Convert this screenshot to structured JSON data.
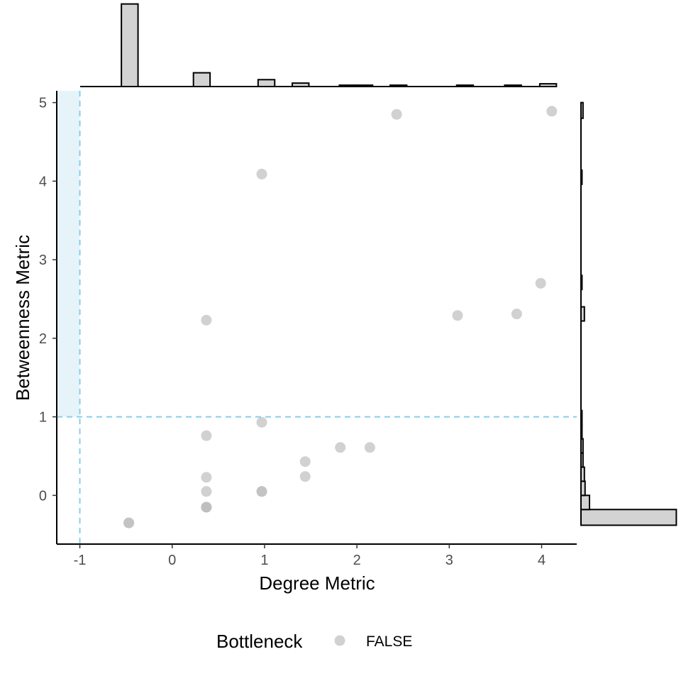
{
  "chart_data": {
    "type": "scatter",
    "title": "",
    "xlabel": "Degree Metric",
    "ylabel": "Betweenness Metric",
    "xlim": [
      -1.25,
      4.38
    ],
    "ylim": [
      -0.62,
      5.15
    ],
    "x_ticks": [
      -1,
      0,
      1,
      2,
      3,
      4
    ],
    "x_tick_labels": [
      "-1",
      "0",
      "1",
      "2",
      "3",
      "4"
    ],
    "y_ticks": [
      0,
      1,
      2,
      3,
      4,
      5
    ],
    "y_tick_labels": [
      "0",
      "1",
      "2",
      "3",
      "4",
      "5"
    ],
    "grid": false,
    "threshold_lines": {
      "x": -1,
      "y": 1,
      "color": "#87CEEB",
      "style": "dashed"
    },
    "shaded_region": {
      "x": [
        -1.25,
        -1
      ],
      "y": [
        1,
        5.15
      ],
      "color": "#E6F4FA"
    },
    "point_color": "#BEBEBE",
    "series": [
      {
        "name": "FALSE",
        "x": [
          -0.47,
          -0.47,
          0.37,
          0.37,
          0.37,
          0.37,
          0.37,
          0.37,
          0.37,
          0.97,
          0.97,
          0.97,
          0.97,
          1.44,
          1.44,
          1.82,
          2.14,
          2.43,
          3.09,
          3.73,
          3.99,
          4.11
        ],
        "y": [
          -0.35,
          -0.35,
          -0.15,
          -0.15,
          0.05,
          0.23,
          0.76,
          2.23,
          -0.15,
          0.05,
          0.05,
          0.93,
          4.09,
          0.24,
          0.43,
          0.61,
          0.61,
          4.85,
          2.29,
          2.31,
          2.7,
          4.89
        ]
      }
    ],
    "top_histogram": {
      "bins": [
        [
          -0.55,
          -0.37
        ],
        [
          0.23,
          0.41
        ],
        [
          0.93,
          1.11
        ],
        [
          1.3,
          1.48
        ],
        [
          1.81,
          1.99
        ],
        [
          1.99,
          2.17
        ],
        [
          2.36,
          2.54
        ],
        [
          3.08,
          3.26
        ],
        [
          3.6,
          3.78
        ],
        [
          3.98,
          4.16
        ]
      ],
      "counts": [
        12,
        2,
        1,
        0.5,
        0.2,
        0.2,
        0.2,
        0.2,
        0.2,
        0.4
      ]
    },
    "right_histogram": {
      "bins": [
        [
          -0.38,
          -0.18
        ],
        [
          -0.18,
          0.0
        ],
        [
          0.0,
          0.18
        ],
        [
          0.18,
          0.36
        ],
        [
          0.36,
          0.54
        ],
        [
          0.54,
          0.72
        ],
        [
          0.72,
          0.9
        ],
        [
          0.9,
          1.08
        ],
        [
          2.22,
          2.4
        ],
        [
          2.62,
          2.8
        ],
        [
          3.96,
          4.14
        ],
        [
          4.8,
          5.0
        ]
      ],
      "counts": [
        28,
        2.5,
        1.2,
        1.0,
        0.6,
        0.6,
        0.3,
        0.3,
        1.0,
        0.3,
        0.3,
        0.6
      ]
    },
    "legend": {
      "title": "Bottleneck",
      "entries": [
        "FALSE"
      ],
      "position": "bottom"
    }
  }
}
